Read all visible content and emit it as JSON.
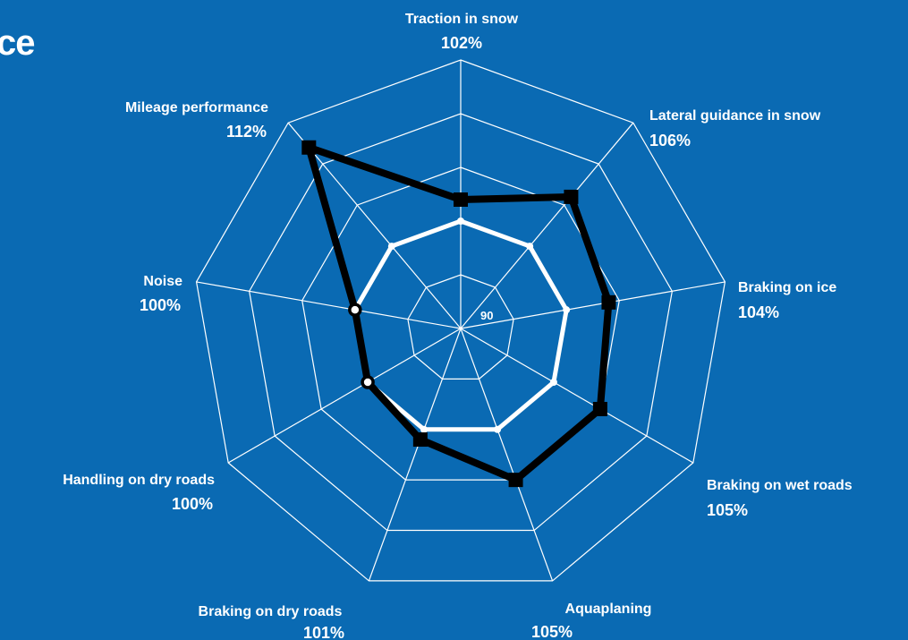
{
  "title_fragment": "ce",
  "chart_data": {
    "type": "radar",
    "title": "ce",
    "axes": [
      {
        "name": "Traction in snow",
        "label": "102%",
        "value": 102
      },
      {
        "name": "Lateral guidance in snow",
        "label": "106%",
        "value": 106
      },
      {
        "name": "Braking on ice",
        "label": "104%",
        "value": 104
      },
      {
        "name": "Braking on wet roads",
        "label": "105%",
        "value": 105
      },
      {
        "name": "Aquaplaning",
        "label": "105%",
        "value": 105
      },
      {
        "name": "Braking on dry roads",
        "label": "101%",
        "value": 101
      },
      {
        "name": "Handling on dry roads",
        "label": "100%",
        "value": 100
      },
      {
        "name": "Noise",
        "label": "100%",
        "value": 100
      },
      {
        "name": "Mileage performance",
        "label": "112%",
        "value": 112
      }
    ],
    "center_tick_label": "90",
    "rlim": [
      90,
      115
    ],
    "rings": [
      90,
      95,
      100,
      105,
      110,
      115
    ],
    "series": [
      {
        "values": [
          100,
          100,
          100,
          100,
          100,
          100,
          100,
          100,
          100
        ],
        "color": "#ffffff",
        "marker": "dot"
      },
      {
        "values": [
          102,
          106,
          104,
          105,
          105,
          101,
          100,
          100,
          112
        ],
        "color": "#000000",
        "marker": "square"
      }
    ],
    "open_marker_axes": [
      "Handling on dry roads",
      "Noise"
    ],
    "colors": {
      "background": "#0a6ab3",
      "grid": "#ffffff"
    }
  }
}
